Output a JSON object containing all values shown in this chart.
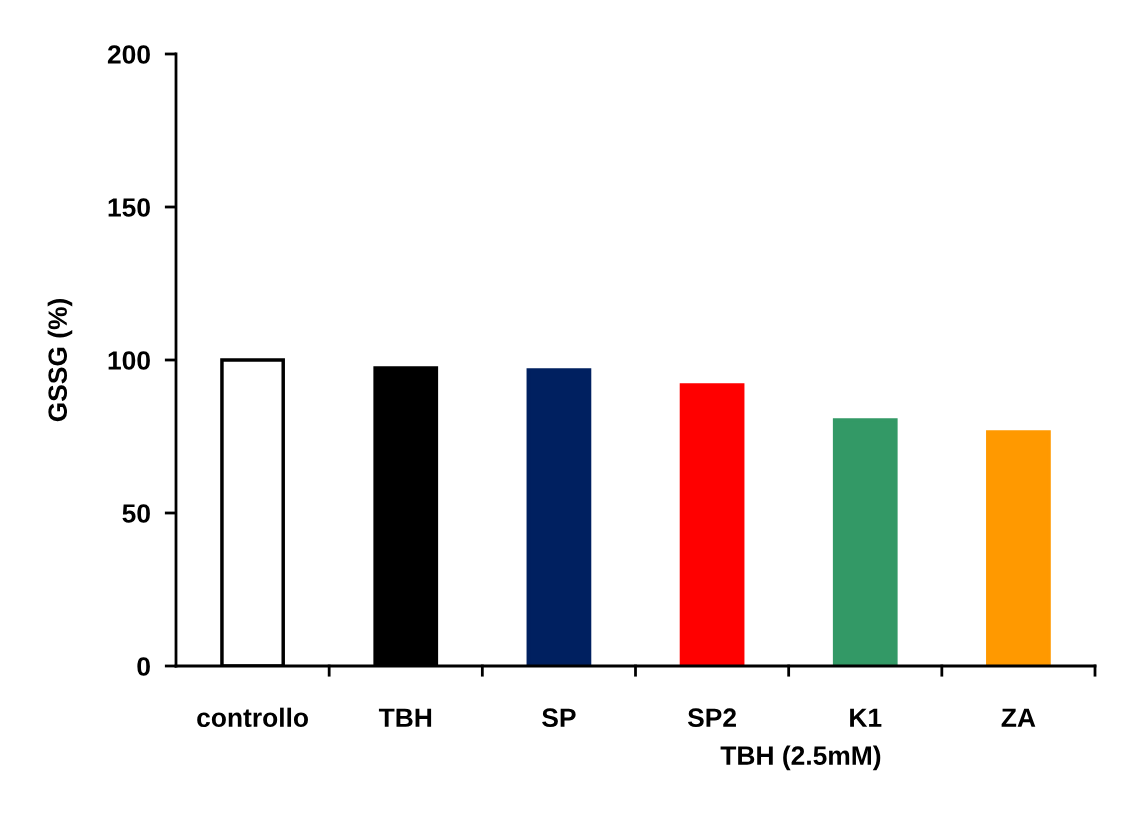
{
  "chart_data": {
    "type": "bar",
    "xlabel": "TBH (2.5mM)",
    "ylabel": "GSSG (%)",
    "categories": [
      "controllo",
      "TBH",
      "SP",
      "SP2",
      "K1",
      "ZA"
    ],
    "values": [
      100,
      97.4,
      96.7,
      91.8,
      80.4,
      76.5
    ],
    "colors": [
      "#ffffff",
      "#000000",
      "#002060",
      "#ff0000",
      "#339966",
      "#ff9900"
    ],
    "ylim": [
      0,
      200
    ],
    "yticks": [
      0,
      50,
      100,
      150,
      200
    ],
    "grid": false,
    "legend": false
  }
}
